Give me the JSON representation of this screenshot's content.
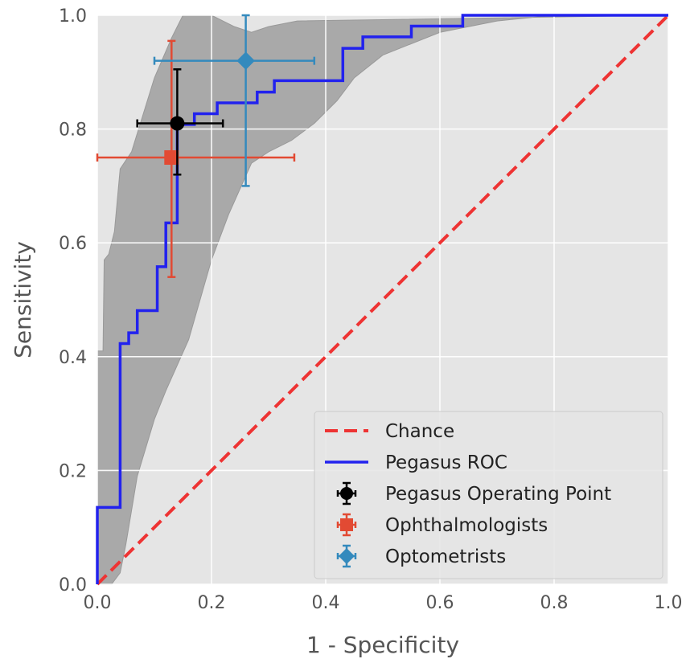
{
  "chart_data": {
    "type": "line",
    "xlabel": "1 - Specificity",
    "ylabel": "Sensitivity",
    "xlim": [
      0,
      1
    ],
    "ylim": [
      0,
      1
    ],
    "grid": true,
    "legend_position": "bottom-right",
    "x_ticks": [
      "0.0",
      "0.2",
      "0.4",
      "0.6",
      "0.8",
      "1.0"
    ],
    "y_ticks": [
      "0.0",
      "0.2",
      "0.4",
      "0.6",
      "0.8",
      "1.0"
    ],
    "colors": {
      "plot_background": "#e5e5e5",
      "grid": "#ffffff",
      "band": "#a9a9a9",
      "chance": "#ee3333",
      "roc": "#2222ee",
      "operating_point": "#000000",
      "ophthalmologists": "#e24a33",
      "optometrists": "#348abd"
    },
    "confidence_band": {
      "upper": [
        [
          0,
          0.41
        ],
        [
          0.01,
          0.41
        ],
        [
          0.012,
          0.57
        ],
        [
          0.02,
          0.58
        ],
        [
          0.03,
          0.62
        ],
        [
          0.04,
          0.73
        ],
        [
          0.06,
          0.76
        ],
        [
          0.1,
          0.89
        ],
        [
          0.13,
          0.96
        ],
        [
          0.15,
          1.0
        ],
        [
          0.2,
          1.0
        ],
        [
          0.24,
          0.98
        ],
        [
          0.27,
          0.97
        ],
        [
          0.3,
          0.98
        ],
        [
          0.35,
          0.99
        ],
        [
          1.0,
          1.0
        ]
      ],
      "lower": [
        [
          1.0,
          1.0
        ],
        [
          0.8,
          1.0
        ],
        [
          0.7,
          0.99
        ],
        [
          0.6,
          0.97
        ],
        [
          0.5,
          0.93
        ],
        [
          0.45,
          0.89
        ],
        [
          0.42,
          0.85
        ],
        [
          0.38,
          0.81
        ],
        [
          0.34,
          0.78
        ],
        [
          0.3,
          0.76
        ],
        [
          0.27,
          0.74
        ],
        [
          0.23,
          0.65
        ],
        [
          0.2,
          0.57
        ],
        [
          0.16,
          0.43
        ],
        [
          0.12,
          0.34
        ],
        [
          0.1,
          0.29
        ],
        [
          0.07,
          0.19
        ],
        [
          0.05,
          0.07
        ],
        [
          0.04,
          0.02
        ],
        [
          0.025,
          0.0
        ],
        [
          0.0,
          0.0
        ]
      ]
    },
    "series": [
      {
        "name": "Chance",
        "style": "dashed",
        "x": [
          0,
          1
        ],
        "y": [
          0,
          1
        ]
      },
      {
        "name": "Pegasus ROC",
        "style": "step",
        "x": [
          0,
          0,
          0.04,
          0.04,
          0.055,
          0.055,
          0.07,
          0.07,
          0.105,
          0.105,
          0.12,
          0.12,
          0.14,
          0.14,
          0.17,
          0.17,
          0.21,
          0.21,
          0.28,
          0.28,
          0.31,
          0.31,
          0.43,
          0.43,
          0.465,
          0.465,
          0.55,
          0.55,
          0.64,
          0.64,
          1.0
        ],
        "y": [
          0,
          0.135,
          0.135,
          0.423,
          0.423,
          0.442,
          0.442,
          0.481,
          0.481,
          0.558,
          0.558,
          0.635,
          0.635,
          0.808,
          0.808,
          0.827,
          0.827,
          0.846,
          0.846,
          0.865,
          0.865,
          0.885,
          0.885,
          0.942,
          0.942,
          0.962,
          0.962,
          0.981,
          0.981,
          1.0,
          1.0
        ]
      },
      {
        "name": "Pegasus Operating Point",
        "marker": "circle",
        "x": 0.14,
        "y": 0.81,
        "x_err": [
          0.07,
          0.22
        ],
        "y_err": [
          0.72,
          0.905
        ]
      },
      {
        "name": "Ophthalmologists",
        "marker": "square",
        "x": 0.13,
        "y": 0.75,
        "x_err": [
          0.0,
          0.345
        ],
        "y_err": [
          0.54,
          0.955
        ]
      },
      {
        "name": "Optometrists",
        "marker": "diamond",
        "x": 0.26,
        "y": 0.92,
        "x_err": [
          0.1,
          0.38
        ],
        "y_err": [
          0.7,
          1.0
        ]
      }
    ]
  }
}
